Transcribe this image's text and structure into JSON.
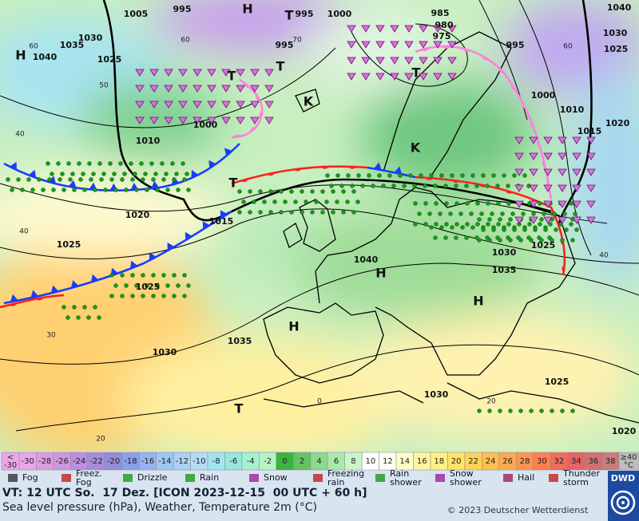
{
  "map": {
    "isobar_labels": [
      1005,
      995,
      1000,
      985,
      980,
      975,
      995,
      995,
      1040,
      1030,
      1025,
      1030,
      1035,
      1025,
      1040,
      995,
      1000,
      1010,
      1015,
      1020,
      1000,
      1010,
      1020,
      1015,
      1025,
      1025,
      1030,
      1035,
      1040,
      1030,
      1025,
      1035,
      1030,
      1025,
      1020
    ],
    "temperature_labels": [
      60,
      50,
      40,
      60,
      70,
      40,
      30,
      20,
      40,
      20,
      0,
      60
    ],
    "pressure_centers": [
      "H",
      "H",
      "T",
      "T",
      "T",
      "T",
      "K",
      "K",
      "T",
      "H",
      "H",
      "H",
      "T"
    ]
  },
  "color_scale": {
    "below": {
      "symbol": "<",
      "value": -30
    },
    "steps": [
      -30,
      -28,
      -26,
      -24,
      -22,
      -20,
      -18,
      -16,
      -14,
      -12,
      -10,
      -8,
      -6,
      -4,
      -2,
      0,
      2,
      4,
      6,
      8,
      10,
      12,
      14,
      16,
      18,
      20,
      22,
      24,
      26,
      28,
      30,
      32,
      34,
      36,
      38
    ],
    "colors": [
      "#eaa6ea",
      "#dc9ce2",
      "#cc96e0",
      "#bb8ede",
      "#a88cdc",
      "#948cdc",
      "#8ca0e6",
      "#96b4f0",
      "#a0c6f2",
      "#aad2f2",
      "#b4dcf5",
      "#a0e4f0",
      "#98e6dc",
      "#a4f0d0",
      "#b8f2c4",
      "#3cb43c",
      "#62c462",
      "#8cd88c",
      "#ace8ac",
      "#ccf4cc",
      "#ffffff",
      "#fffff0",
      "#ffffc8",
      "#fff5a0",
      "#fff082",
      "#ffe466",
      "#ffd25a",
      "#ffbe50",
      "#ffa850",
      "#ff9452",
      "#ff7e52",
      "#f06c5c",
      "#e46464",
      "#d27070",
      "#c87c7c"
    ],
    "above": {
      "symbol": "≥40",
      "unit": "°C"
    }
  },
  "legend": [
    {
      "lines": [
        "Fog"
      ]
    },
    {
      "lines": [
        "Freez.",
        "Fog"
      ]
    },
    {
      "lines": [
        "Drizzle"
      ]
    },
    {
      "lines": [
        "Rain"
      ]
    },
    {
      "lines": [
        "Snow"
      ]
    },
    {
      "lines": [
        "Freezing",
        "rain"
      ]
    },
    {
      "lines": [
        "Rain",
        "shower"
      ]
    },
    {
      "lines": [
        "Snow",
        "shower"
      ]
    },
    {
      "lines": [
        "Hail"
      ]
    },
    {
      "lines": [
        "Thunder",
        "storm"
      ]
    }
  ],
  "footer": {
    "valid_time": "VT: 12 UTC So.  17 Dez. [ICON 2023-12-15  00 UTC + 60 h]",
    "parameters": "Sea level pressure (hPa), Weather, Temperature 2m (°C)",
    "copyright": "© 2023 Deutscher Wetterdienst",
    "logo": "DWD"
  }
}
